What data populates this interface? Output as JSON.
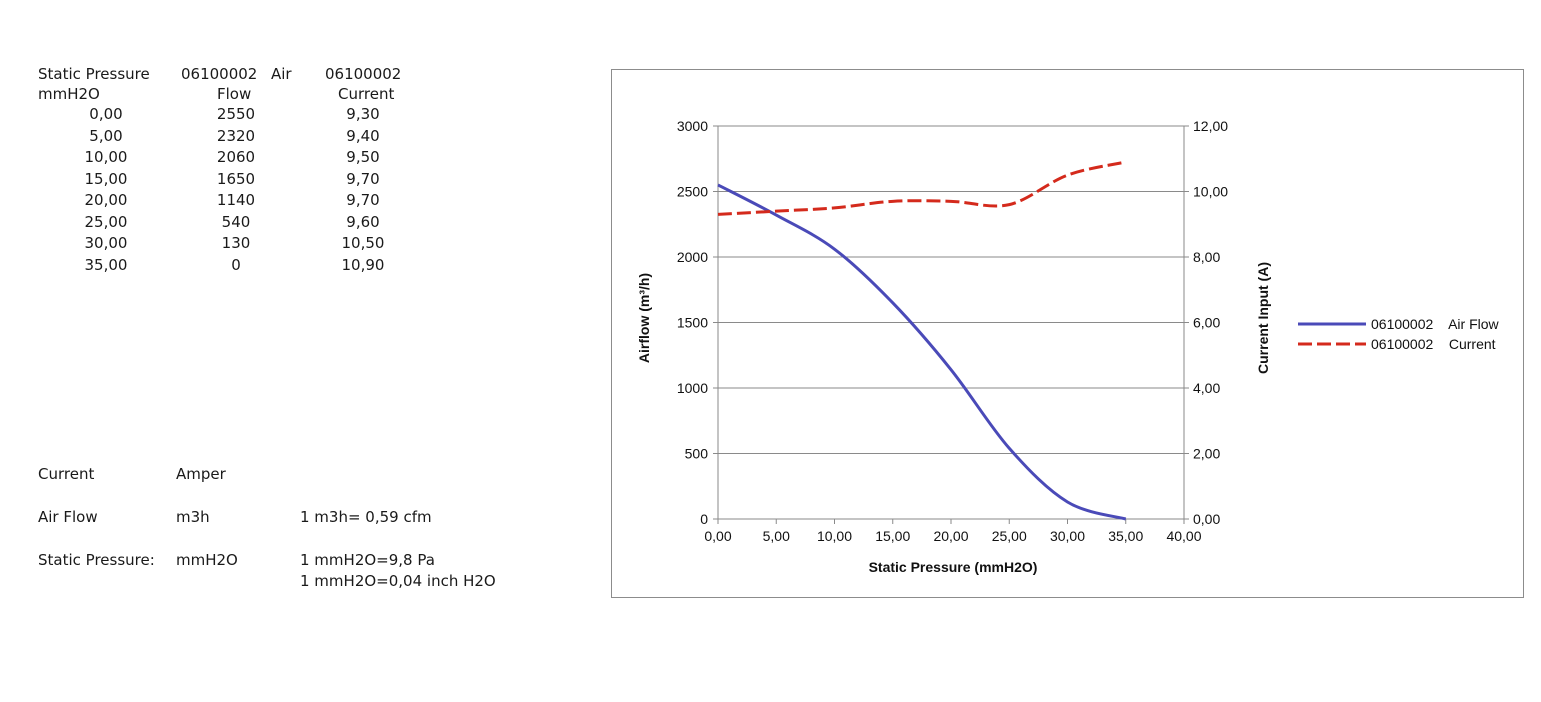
{
  "table": {
    "col1_header_line1": "Static Pressure",
    "col1_header_line2": "mmH2O",
    "col2_header_line1": "06100002",
    "col2_header_line2": "Flow",
    "col2b_header_line1": "Air",
    "col3_header_line1": "06100002",
    "col3_header_line2": "Current",
    "rows": [
      [
        "0,00",
        "2550",
        "9,30"
      ],
      [
        "5,00",
        "2320",
        "9,40"
      ],
      [
        "10,00",
        "2060",
        "9,50"
      ],
      [
        "15,00",
        "1650",
        "9,70"
      ],
      [
        "20,00",
        "1140",
        "9,70"
      ],
      [
        "25,00",
        "540",
        "9,60"
      ],
      [
        "30,00",
        "130",
        "10,50"
      ],
      [
        "35,00",
        "0",
        "10,90"
      ]
    ]
  },
  "units": {
    "current_label": "Current",
    "current_unit": "Amper",
    "airflow_label": "Air Flow",
    "airflow_unit": "m3h",
    "airflow_conversion": "1 m3h= 0,59 cfm",
    "pressure_label": "Static Pressure:",
    "pressure_unit": "mmH2O",
    "pressure_conversion_1": "1 mmH2O=9,8 Pa",
    "pressure_conversion_2": "1 mmH2O=0,04 inch H2O"
  },
  "chart_data": {
    "type": "line",
    "xlabel": "Static Pressure (mmH2O)",
    "ylabel_left": "Airflow (m³/h)",
    "ylabel_right": "Current Input (A)",
    "x_ticks": [
      "0,00",
      "5,00",
      "10,00",
      "15,00",
      "20,00",
      "25,00",
      "30,00",
      "35,00",
      "40,00"
    ],
    "y_left_ticks": [
      "0",
      "500",
      "1000",
      "1500",
      "2000",
      "2500",
      "3000"
    ],
    "y_right_ticks": [
      "0,00",
      "2,00",
      "4,00",
      "6,00",
      "8,00",
      "10,00",
      "12,00"
    ],
    "xlim": [
      0,
      40
    ],
    "ylim_left": [
      0,
      3000
    ],
    "ylim_right": [
      0,
      12
    ],
    "grid": "horizontal",
    "legend_position": "right",
    "x": [
      0,
      5,
      10,
      15,
      20,
      25,
      30,
      35
    ],
    "series": [
      {
        "name": "06100002    Air Flow",
        "axis": "left",
        "style": "solid",
        "color": "#4a4ab8",
        "values": [
          2550,
          2320,
          2060,
          1650,
          1140,
          540,
          130,
          0
        ]
      },
      {
        "name": "06100002    Current",
        "axis": "right",
        "style": "dashed",
        "color": "#d42a1c",
        "values": [
          9.3,
          9.4,
          9.5,
          9.7,
          9.7,
          9.6,
          10.5,
          10.9
        ]
      }
    ]
  }
}
